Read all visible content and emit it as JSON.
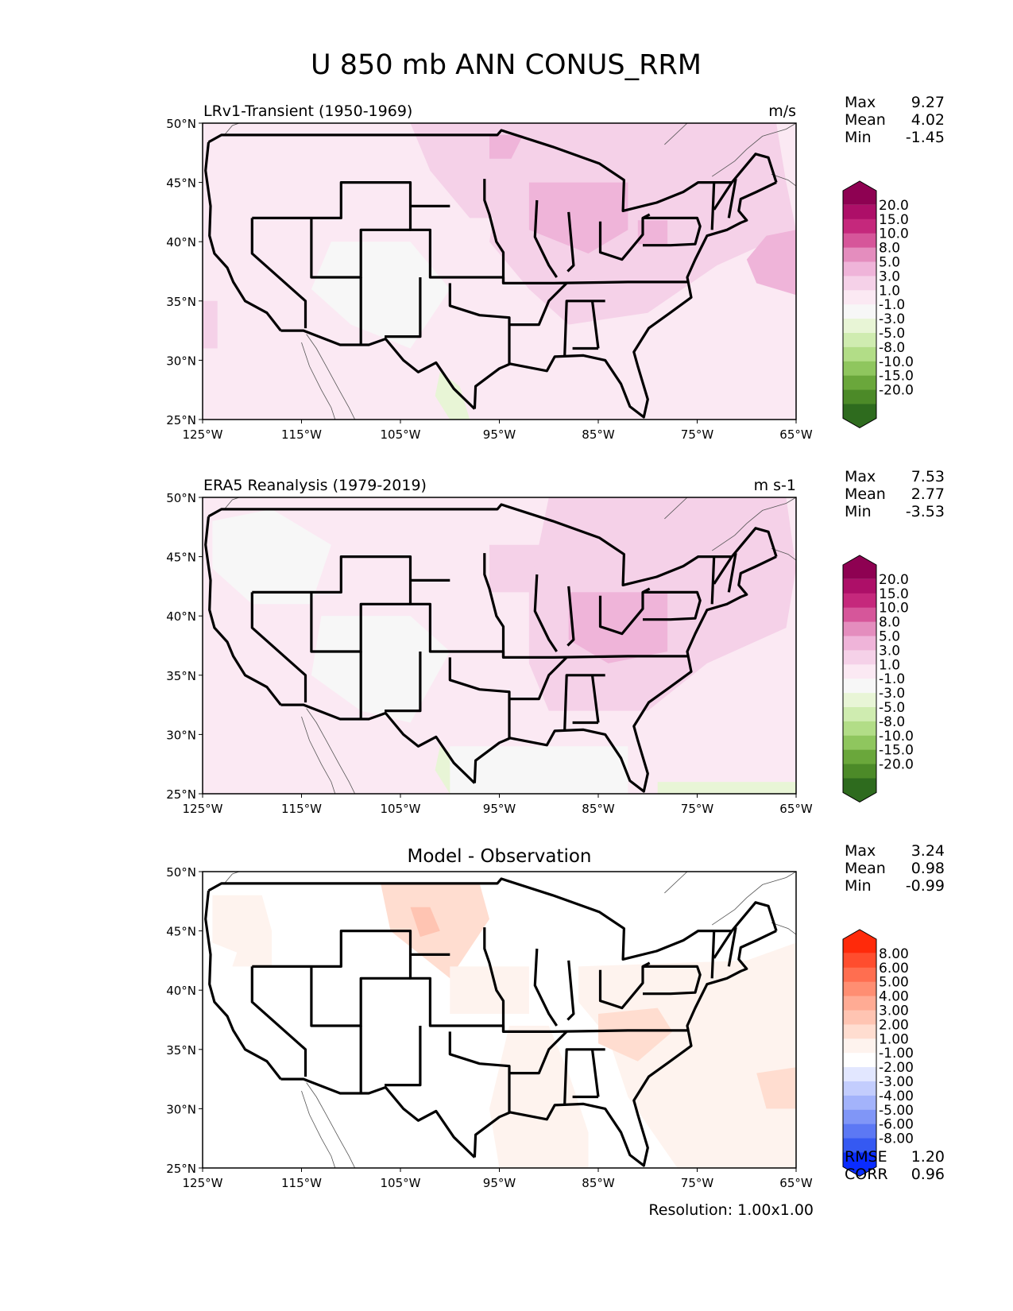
{
  "chart_data": {
    "type": "contour_map",
    "title": "U 850 mb ANN CONUS_RRM",
    "footer": "Resolution: 1.00x1.00",
    "lat_ticks": [
      "50°N",
      "45°N",
      "40°N",
      "35°N",
      "30°N",
      "25°N"
    ],
    "lon_ticks": [
      "125°W",
      "115°W",
      "105°W",
      "95°W",
      "85°W",
      "75°W",
      "65°W"
    ],
    "extent": {
      "lon": [
        -125,
        -65
      ],
      "lat": [
        25,
        50
      ]
    },
    "panels": [
      {
        "id": "model",
        "left_title": "LRv1-Transient (1950-1969)",
        "center_title": "",
        "right_title": "m/s",
        "stats": [
          {
            "label": "Max",
            "value": "9.27"
          },
          {
            "label": "Mean",
            "value": "4.02"
          },
          {
            "label": "Min",
            "value": "-1.45"
          }
        ],
        "colorbar": {
          "labels": [
            "20.0",
            "15.0",
            "10.0",
            "8.0",
            "5.0",
            "3.0",
            "1.0",
            "-1.0",
            "-3.0",
            "-5.0",
            "-8.0",
            "-10.0",
            "-15.0",
            "-20.0"
          ],
          "colors": [
            "#8e0152",
            "#ad0f68",
            "#c5287c",
            "#d6569a",
            "#e48dbe",
            "#efb4d9",
            "#f5d1e8",
            "#fbe9f3",
            "#f7f7f7",
            "#e8f5d6",
            "#cfecb0",
            "#b2dd87",
            "#8fc65e",
            "#6aa73b",
            "#4c8a28",
            "#2e6b1e"
          ],
          "upper_ext": "#8e0152",
          "lower_ext": "#2e6b1e"
        }
      },
      {
        "id": "obs",
        "left_title": "ERA5 Reanalysis (1979-2019)",
        "center_title": "",
        "right_title": "m s-1",
        "stats": [
          {
            "label": "Max",
            "value": "7.53"
          },
          {
            "label": "Mean",
            "value": "2.77"
          },
          {
            "label": "Min",
            "value": "-3.53"
          }
        ],
        "colorbar": {
          "labels": [
            "20.0",
            "15.0",
            "10.0",
            "8.0",
            "5.0",
            "3.0",
            "1.0",
            "-1.0",
            "-3.0",
            "-5.0",
            "-8.0",
            "-10.0",
            "-15.0",
            "-20.0"
          ],
          "colors": [
            "#8e0152",
            "#ad0f68",
            "#c5287c",
            "#d6569a",
            "#e48dbe",
            "#efb4d9",
            "#f5d1e8",
            "#fbe9f3",
            "#f7f7f7",
            "#e8f5d6",
            "#cfecb0",
            "#b2dd87",
            "#8fc65e",
            "#6aa73b",
            "#4c8a28",
            "#2e6b1e"
          ],
          "upper_ext": "#8e0152",
          "lower_ext": "#2e6b1e"
        }
      },
      {
        "id": "diff",
        "left_title": "",
        "center_title": "Model - Observation",
        "right_title": "",
        "stats": [
          {
            "label": "Max",
            "value": "3.24"
          },
          {
            "label": "Mean",
            "value": "0.98"
          },
          {
            "label": "Min",
            "value": "-0.99"
          }
        ],
        "extra_stats": [
          {
            "label": "RMSE",
            "value": "1.20"
          },
          {
            "label": "CORR",
            "value": "0.96"
          }
        ],
        "colorbar": {
          "labels": [
            "8.00",
            "6.00",
            "5.00",
            "4.00",
            "3.00",
            "2.00",
            "1.00",
            "-1.00",
            "-2.00",
            "-3.00",
            "-4.00",
            "-5.00",
            "-6.00",
            "-8.00"
          ],
          "colors": [
            "#ff2a0a",
            "#ff4d2e",
            "#ff6e50",
            "#ff8e72",
            "#ffab94",
            "#ffc4b2",
            "#ffddd0",
            "#fef3ee",
            "#ffffff",
            "#e2e7ff",
            "#c3cdfd",
            "#a3b3fb",
            "#8096f7",
            "#5c78f4",
            "#3559f2",
            "#0a2cff"
          ],
          "upper_ext": "#ff2a0a",
          "lower_ext": "#0a2cff"
        }
      }
    ]
  }
}
